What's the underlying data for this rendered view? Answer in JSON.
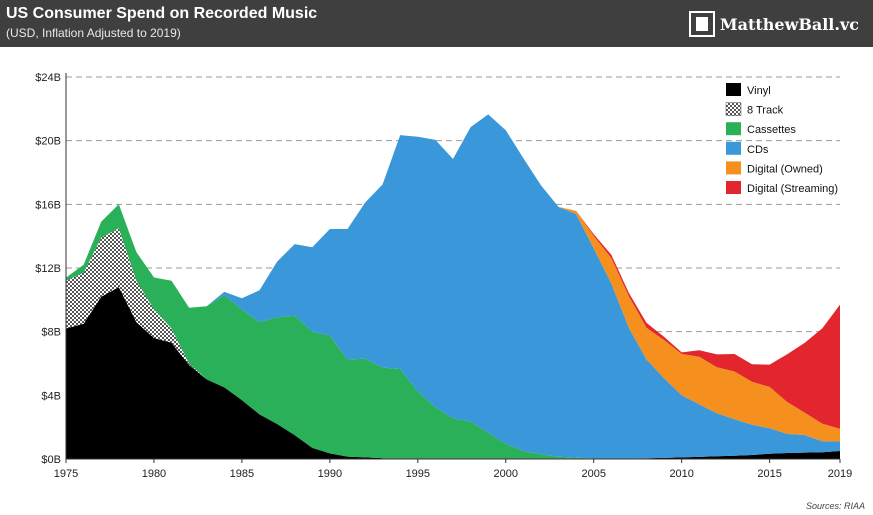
{
  "header": {
    "title": "US Consumer Spend on Recorded Music",
    "subtitle": "(USD, Inflation Adjusted to 2019)",
    "brand": "MatthewBall.vc"
  },
  "source": "Sources: RIAA",
  "chart_data": {
    "type": "area",
    "stacked": true,
    "x": [
      1975,
      1976,
      1977,
      1978,
      1979,
      1980,
      1981,
      1982,
      1983,
      1984,
      1985,
      1986,
      1987,
      1988,
      1989,
      1990,
      1991,
      1992,
      1993,
      1994,
      1995,
      1996,
      1997,
      1998,
      1999,
      2000,
      2001,
      2002,
      2003,
      2004,
      2005,
      2006,
      2007,
      2008,
      2009,
      2010,
      2011,
      2012,
      2013,
      2014,
      2015,
      2016,
      2017,
      2018,
      2019
    ],
    "xticks": [
      1975,
      1980,
      1985,
      1990,
      1995,
      2000,
      2005,
      2010,
      2015,
      2019
    ],
    "yticks": [
      0,
      4,
      8,
      12,
      16,
      20,
      24
    ],
    "ytick_labels": [
      "$0B",
      "$4B",
      "$8B",
      "$12B",
      "$16B",
      "$20B",
      "$24B"
    ],
    "ylim": [
      0,
      24
    ],
    "grid": "horizontal-dashed",
    "legend_position": "top-right",
    "series": [
      {
        "name": "Vinyl",
        "color": "#000000",
        "pattern": "solid",
        "values": [
          8.2,
          8.5,
          10.2,
          10.8,
          8.6,
          7.6,
          7.3,
          5.9,
          5.0,
          4.5,
          3.7,
          2.8,
          2.2,
          1.5,
          0.7,
          0.35,
          0.15,
          0.1,
          0.05,
          0.05,
          0.05,
          0.05,
          0.05,
          0.05,
          0.05,
          0.05,
          0.05,
          0.04,
          0.04,
          0.04,
          0.03,
          0.03,
          0.03,
          0.05,
          0.07,
          0.1,
          0.13,
          0.17,
          0.2,
          0.25,
          0.33,
          0.38,
          0.4,
          0.42,
          0.5
        ]
      },
      {
        "name": "8 Track",
        "color": "#8a8a8a",
        "pattern": "checker",
        "values": [
          3.0,
          3.2,
          3.7,
          3.7,
          2.6,
          1.8,
          0.9,
          0.1,
          0,
          0,
          0,
          0,
          0,
          0,
          0,
          0,
          0,
          0,
          0,
          0,
          0,
          0,
          0,
          0,
          0,
          0,
          0,
          0,
          0,
          0,
          0,
          0,
          0,
          0,
          0,
          0,
          0,
          0,
          0,
          0,
          0,
          0,
          0,
          0,
          0
        ]
      },
      {
        "name": "Cassettes",
        "color": "#2bb05a",
        "pattern": "solid",
        "values": [
          0.2,
          0.5,
          1.0,
          1.5,
          1.8,
          2.0,
          3.0,
          3.5,
          4.6,
          5.8,
          5.7,
          5.8,
          6.7,
          7.5,
          7.3,
          7.4,
          6.1,
          6.2,
          5.7,
          5.6,
          4.2,
          3.2,
          2.5,
          2.3,
          1.6,
          0.9,
          0.45,
          0.25,
          0.1,
          0.05,
          0,
          0,
          0,
          0,
          0,
          0,
          0,
          0,
          0,
          0,
          0,
          0,
          0,
          0,
          0
        ]
      },
      {
        "name": "CDs",
        "color": "#3a97da",
        "pattern": "solid",
        "values": [
          0,
          0,
          0,
          0,
          0,
          0,
          0,
          0,
          0,
          0.2,
          0.7,
          2.0,
          3.5,
          4.5,
          5.3,
          6.7,
          8.2,
          9.8,
          11.5,
          14.7,
          16.0,
          16.8,
          16.3,
          18.5,
          20.0,
          19.7,
          18.4,
          16.9,
          15.7,
          15.3,
          13.2,
          11.0,
          8.2,
          6.2,
          5.0,
          3.9,
          3.3,
          2.7,
          2.3,
          1.9,
          1.6,
          1.2,
          1.1,
          0.7,
          0.6
        ]
      },
      {
        "name": "Digital (Owned)",
        "color": "#f5901f",
        "pattern": "solid",
        "values": [
          0,
          0,
          0,
          0,
          0,
          0,
          0,
          0,
          0,
          0,
          0,
          0,
          0,
          0,
          0,
          0,
          0,
          0,
          0,
          0,
          0,
          0,
          0,
          0,
          0,
          0,
          0,
          0,
          0,
          0.2,
          0.8,
          1.6,
          2.0,
          2.0,
          2.4,
          2.6,
          3.0,
          2.9,
          3.0,
          2.7,
          2.6,
          2.0,
          1.4,
          1.1,
          0.8
        ]
      },
      {
        "name": "Digital (Streaming)",
        "color": "#e3262d",
        "pattern": "solid",
        "values": [
          0,
          0,
          0,
          0,
          0,
          0,
          0,
          0,
          0,
          0,
          0,
          0,
          0,
          0,
          0,
          0,
          0,
          0,
          0,
          0,
          0,
          0,
          0,
          0,
          0,
          0,
          0,
          0,
          0,
          0,
          0.1,
          0.2,
          0.2,
          0.3,
          0.2,
          0.1,
          0.4,
          0.8,
          1.1,
          1.1,
          1.4,
          3.0,
          4.4,
          6.0,
          7.8
        ]
      }
    ]
  }
}
